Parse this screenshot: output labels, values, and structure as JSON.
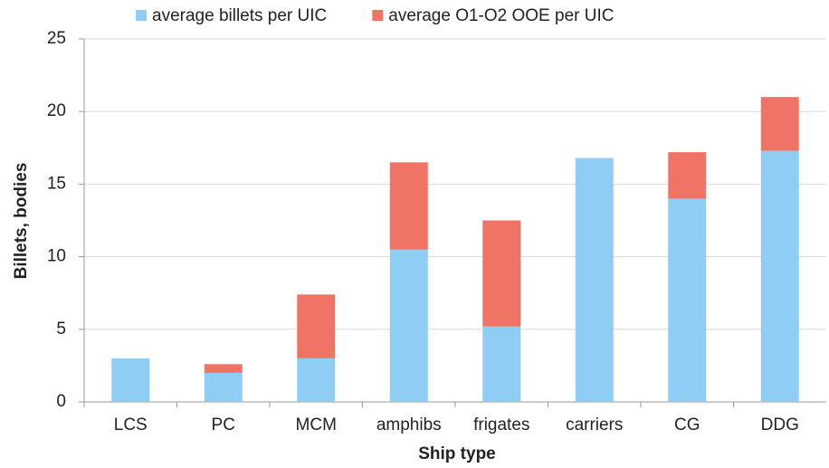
{
  "chart_data": {
    "type": "stacked_bar",
    "categories": [
      "LCS",
      "PC",
      "MCM",
      "amphibs",
      "frigates",
      "carriers",
      "CG",
      "DDG"
    ],
    "series": [
      {
        "name": "average billets per UIC",
        "color": "#8fcdf4",
        "values": [
          3,
          2,
          3,
          10.5,
          5.2,
          16.8,
          14,
          17.3
        ]
      },
      {
        "name": "average O1-O2 OOE per UIC",
        "color": "#ef7466",
        "values": [
          0,
          0.6,
          4.4,
          6,
          7.3,
          0,
          3.2,
          3.7
        ]
      }
    ],
    "ylim": [
      0,
      25
    ],
    "yticks": [
      0,
      5,
      10,
      15,
      20,
      25
    ],
    "grid": true,
    "legend": "top",
    "y_label": "Billets, bodies",
    "x_label": "Ship type"
  }
}
